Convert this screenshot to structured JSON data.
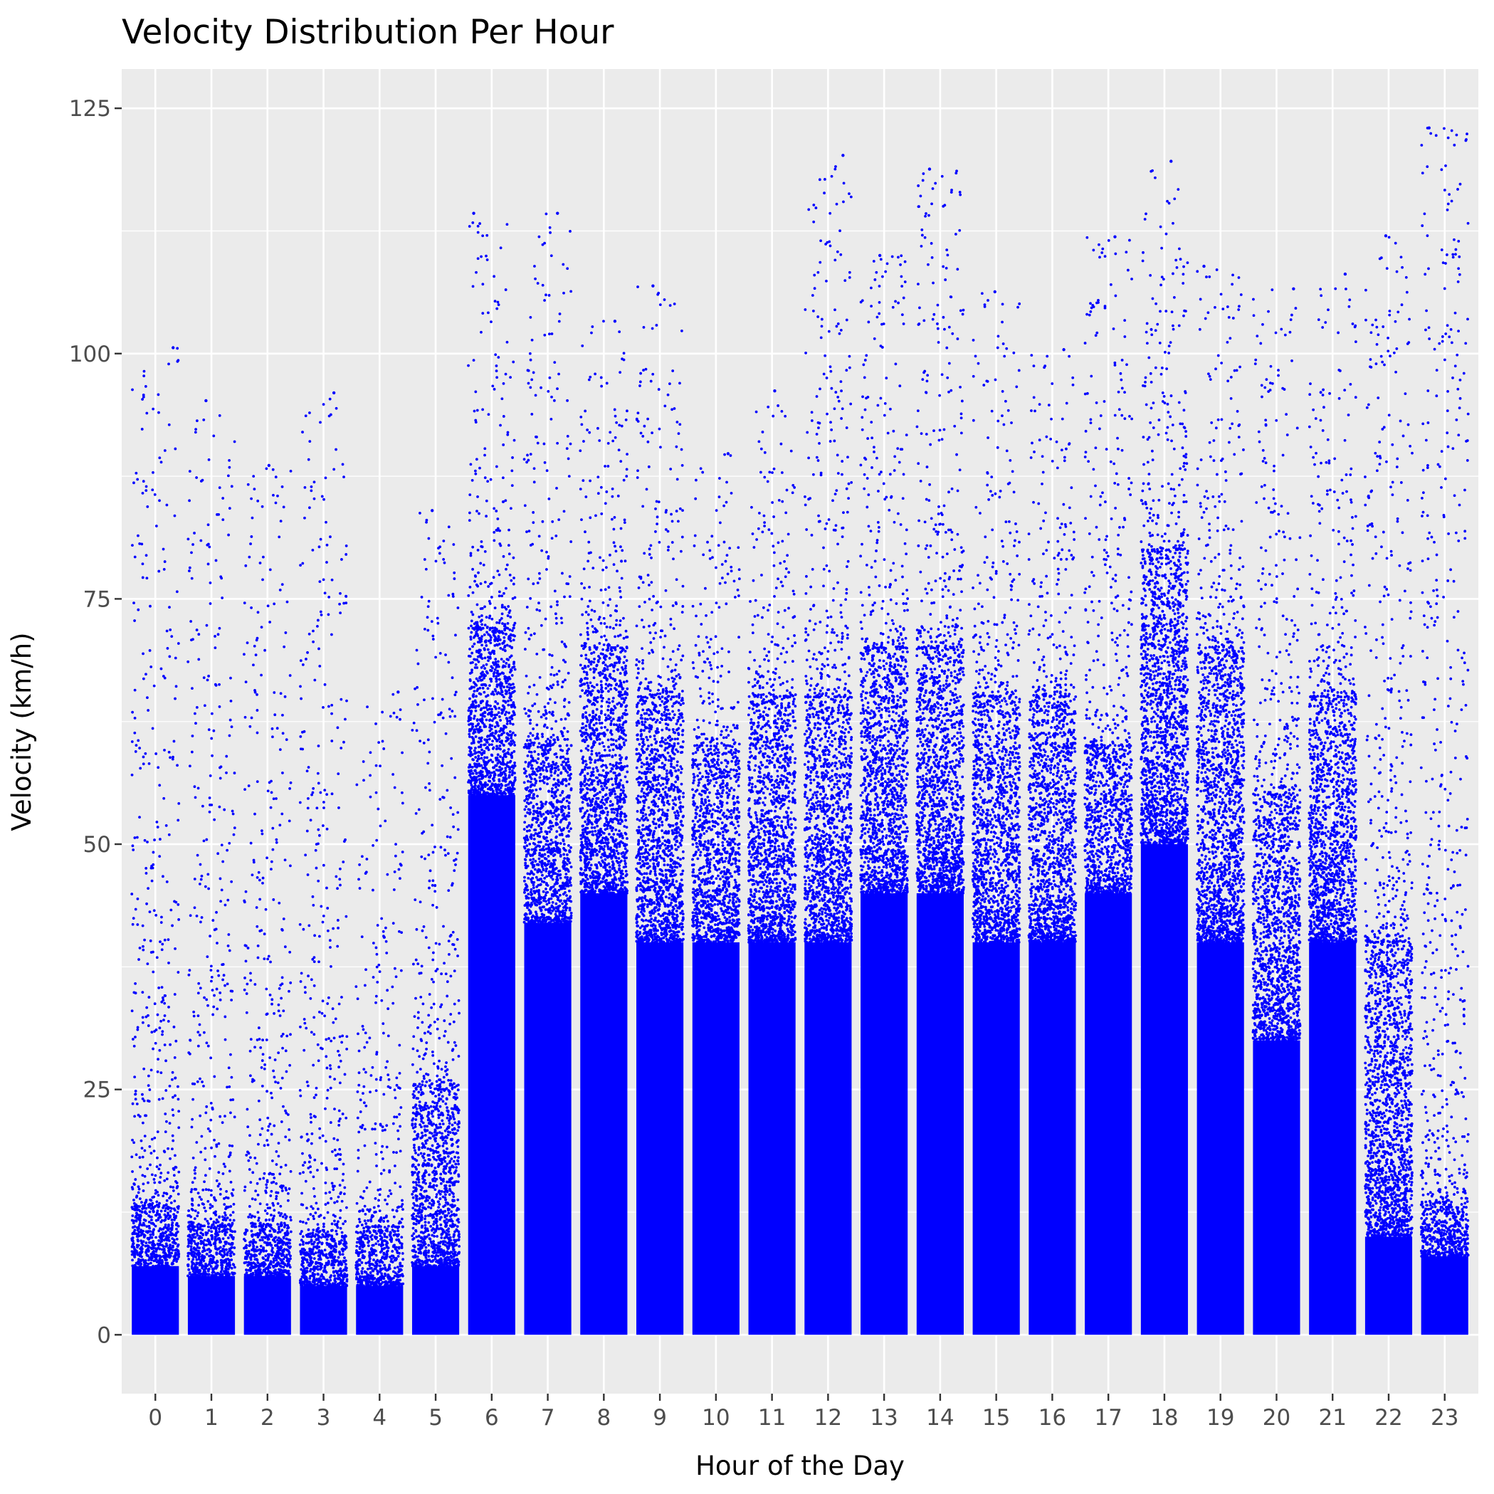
{
  "chart_data": {
    "type": "scatter",
    "title": "Velocity Distribution Per Hour",
    "xlabel": "Hour of the Day",
    "ylabel": "Velocity (km/h)",
    "x_ticks": [
      "0",
      "1",
      "2",
      "3",
      "4",
      "5",
      "6",
      "7",
      "8",
      "9",
      "10",
      "11",
      "12",
      "13",
      "14",
      "15",
      "16",
      "17",
      "18",
      "19",
      "20",
      "21",
      "22",
      "23"
    ],
    "y_ticks": [
      "0",
      "25",
      "50",
      "75",
      "100",
      "125"
    ],
    "xlim": [
      -0.6,
      23.6
    ],
    "ylim": [
      -6,
      129
    ],
    "grid": true,
    "jitter": 0.42,
    "point_color": "#0000ff",
    "panel_color": "#ebebeb",
    "grid_color": "#ffffff",
    "series": [
      {
        "hour": 0,
        "dense_max": 7,
        "mid_max": 13,
        "max": 100.6
      },
      {
        "hour": 1,
        "dense_max": 6,
        "mid_max": 11,
        "max": 95.2
      },
      {
        "hour": 2,
        "dense_max": 6,
        "mid_max": 11,
        "max": 88.6
      },
      {
        "hour": 3,
        "dense_max": 5,
        "mid_max": 10,
        "max": 96.0
      },
      {
        "hour": 4,
        "dense_max": 5,
        "mid_max": 11,
        "max": 65.5
      },
      {
        "hour": 5,
        "dense_max": 7,
        "mid_max": 25,
        "max": 84.0
      },
      {
        "hour": 6,
        "dense_max": 55,
        "mid_max": 72,
        "max": 114.3
      },
      {
        "hour": 7,
        "dense_max": 42,
        "mid_max": 60,
        "max": 114.3
      },
      {
        "hour": 8,
        "dense_max": 45,
        "mid_max": 70,
        "max": 103.3
      },
      {
        "hour": 9,
        "dense_max": 40,
        "mid_max": 65,
        "max": 106.9
      },
      {
        "hour": 10,
        "dense_max": 40,
        "mid_max": 60,
        "max": 89.8
      },
      {
        "hour": 11,
        "dense_max": 40,
        "mid_max": 65,
        "max": 96.2
      },
      {
        "hour": 12,
        "dense_max": 40,
        "mid_max": 65,
        "max": 120.2
      },
      {
        "hour": 13,
        "dense_max": 45,
        "mid_max": 70,
        "max": 110.0
      },
      {
        "hour": 14,
        "dense_max": 45,
        "mid_max": 70,
        "max": 118.8
      },
      {
        "hour": 15,
        "dense_max": 40,
        "mid_max": 65,
        "max": 106.3
      },
      {
        "hour": 16,
        "dense_max": 40,
        "mid_max": 65,
        "max": 100.4
      },
      {
        "hour": 17,
        "dense_max": 45,
        "mid_max": 60,
        "max": 111.9
      },
      {
        "hour": 18,
        "dense_max": 50,
        "mid_max": 80,
        "max": 119.6
      },
      {
        "hour": 19,
        "dense_max": 40,
        "mid_max": 70,
        "max": 108.9
      },
      {
        "hour": 20,
        "dense_max": 30,
        "mid_max": 55,
        "max": 106.6
      },
      {
        "hour": 21,
        "dense_max": 40,
        "mid_max": 65,
        "max": 108.1
      },
      {
        "hour": 22,
        "dense_max": 10,
        "mid_max": 40,
        "max": 112.0
      },
      {
        "hour": 23,
        "dense_max": 8,
        "mid_max": 13,
        "max": 123.0
      }
    ]
  }
}
